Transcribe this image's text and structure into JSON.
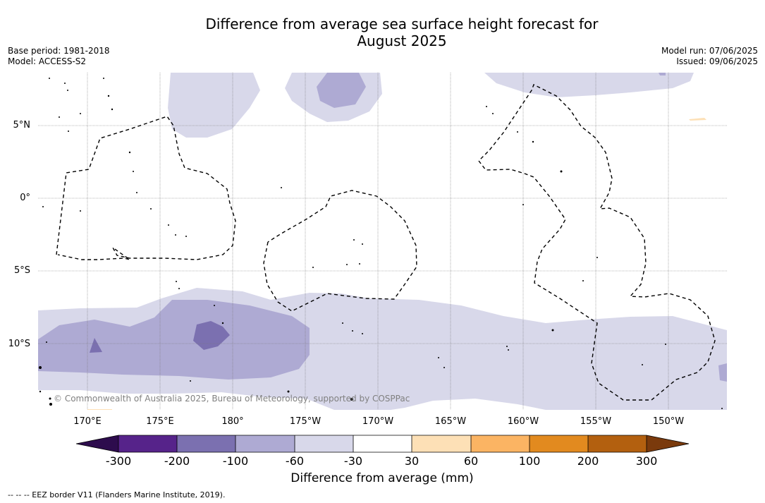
{
  "title_line1": "Difference from average sea surface height forecast for",
  "title_line2": "August 2025",
  "base_period": "Base period: 1981-2018",
  "model": "Model: ACCESS-S2",
  "model_run": "Model run: 07/06/2025",
  "issued": "Issued: 09/06/2025",
  "lat_labels": [
    "5°N",
    "0°",
    "5°S",
    "10°S"
  ],
  "lon_labels": [
    "170°E",
    "175°E",
    "180°",
    "175°W",
    "170°W",
    "165°W",
    "160°W",
    "155°W",
    "150°W"
  ],
  "copyright": "© Commonwealth of Australia 2025, Bureau of Meteorology, supported by COSPPac",
  "colorbar": {
    "title": "Difference from average (mm)",
    "ticks": [
      "-300",
      "-200",
      "-100",
      "-60",
      "-30",
      "30",
      "60",
      "100",
      "200",
      "300"
    ],
    "colors": [
      "#2d0c4d",
      "#56238a",
      "#7b70b0",
      "#aeaad3",
      "#d8d8ea",
      "#ffffff",
      "#fde0b6",
      "#fbb463",
      "#e28a1f",
      "#b3600f",
      "#7a3a0c"
    ]
  },
  "eez_note": "--  --  -- EEZ border V11 (Flanders Marine Institute, 2019)."
}
